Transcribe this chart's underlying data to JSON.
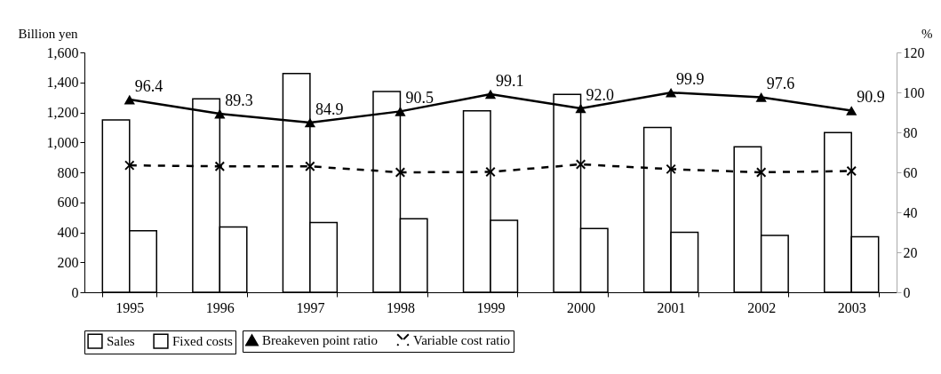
{
  "chart_data": {
    "type": "bar",
    "ylabel": "Billion yen",
    "y2label": "%",
    "categories": [
      "1995",
      "1996",
      "1997",
      "1998",
      "1999",
      "2000",
      "2001",
      "2002",
      "2003"
    ],
    "series": [
      {
        "name": "Sales",
        "color": "#ffffff",
        "values": [
          1150,
          1290,
          1460,
          1340,
          1210,
          1320,
          1100,
          970,
          1065
        ]
      },
      {
        "name": "Fixed costs",
        "color": "#ffffff",
        "values": [
          410,
          435,
          465,
          490,
          480,
          425,
          400,
          380,
          370
        ]
      },
      {
        "name": "Breakeven point ratio",
        "type": "line",
        "axis": "y2",
        "color": "#000000",
        "marker": "triangle",
        "line_style": "solid",
        "values": [
          96.4,
          89.3,
          84.9,
          90.5,
          99.1,
          92.0,
          99.9,
          97.6,
          90.9
        ],
        "value_labels": [
          "96.4",
          "89.3",
          "84.9",
          "90.5",
          "99.1",
          "92.0",
          "99.9",
          "97.6",
          "90.9"
        ]
      },
      {
        "name": "Variable cost ratio",
        "type": "line",
        "axis": "y2",
        "color": "#000000",
        "marker": "cross",
        "line_style": "dashed",
        "values": [
          63.5,
          63,
          63,
          60,
          60.2,
          64,
          61.6,
          60,
          60.7
        ]
      }
    ],
    "ylim": [
      0,
      1600
    ],
    "yticks": [
      0,
      200,
      400,
      600,
      800,
      {
        "value": 1000,
        "label": "1,000"
      },
      {
        "value": 1200,
        "label": "1,200"
      },
      {
        "value": 1400,
        "label": "1,400"
      },
      {
        "value": 1600,
        "label": "1,600"
      }
    ],
    "y2lim": [
      0,
      120
    ],
    "y2ticks": [
      0,
      20,
      40,
      60,
      80,
      100,
      120
    ],
    "grid": false,
    "legend": "bottom"
  }
}
